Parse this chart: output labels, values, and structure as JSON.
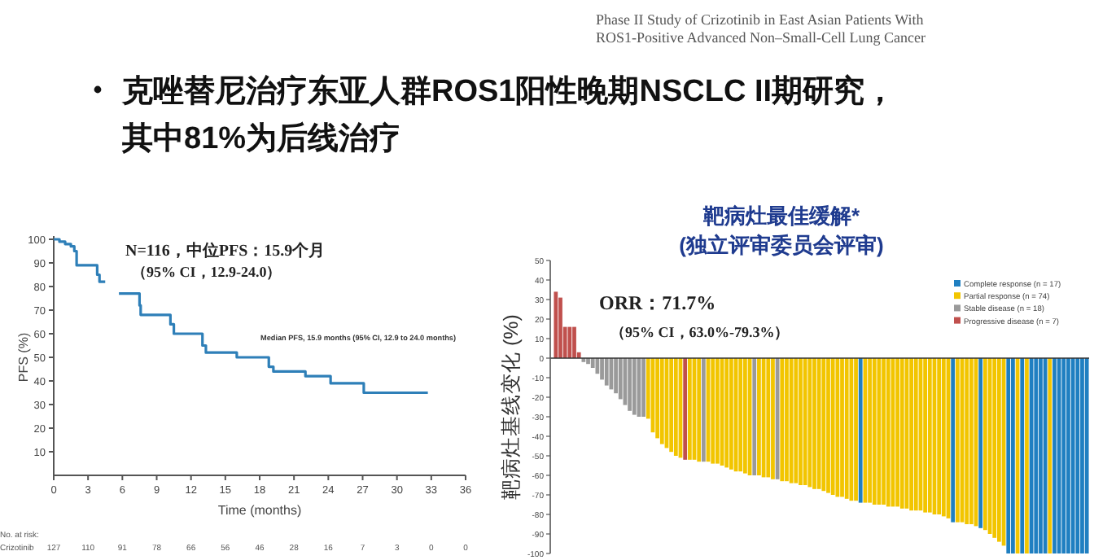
{
  "chart_data": [
    {
      "type": "step",
      "xlabel": "Time (months)",
      "ylabel": "PFS (%)",
      "xlim": [
        0,
        36
      ],
      "xticks": [
        0,
        3,
        6,
        9,
        12,
        15,
        18,
        21,
        24,
        27,
        30,
        33,
        36
      ],
      "ylim": [
        0,
        100
      ],
      "yticks": [
        10,
        20,
        30,
        40,
        50,
        60,
        70,
        80,
        90,
        100
      ],
      "series": [
        {
          "color": "#2e7fb8",
          "x": [
            0,
            0.5,
            1,
            1.5,
            1.8,
            2,
            3.5,
            3.8,
            4,
            4.5,
            5,
            5.7,
            7.2,
            7.5,
            7.6,
            10,
            10.2,
            10.5,
            12.8,
            13,
            13.3,
            15.5,
            16,
            18.5,
            18.8,
            19.2,
            21.5,
            22,
            24,
            24.2,
            27,
            27.1,
            32.7
          ],
          "values": [
            100,
            99,
            98,
            97,
            95,
            89,
            89,
            85,
            82,
            82,
            null,
            77,
            77,
            72,
            68,
            68,
            64,
            60,
            60,
            55,
            52,
            52,
            50,
            50,
            46,
            44,
            44,
            42,
            42,
            39,
            39,
            35,
            35
          ]
        }
      ],
      "annotations": [
        "Phase II Study of Crizotinib in East Asian Patients With",
        "ROS1-Positive Advanced Non–Small-Cell Lung Cancer",
        "克唑替尼治疗东亚人群ROS1阳性晚期NSCLC II期研究，",
        "其中81%为后线治疗",
        "N=116，中位PFS：15.9个月",
        "（95% CI，12.9-24.0）",
        "Median PFS, 15.9 months (95% CI, 12.9 to 24.0 months)",
        "No. at risk:",
        "Crizotinib",
        "127",
        "110",
        "91",
        "78",
        "66",
        "56",
        "46",
        "28",
        "16",
        "7",
        "3",
        "0",
        "0"
      ]
    },
    {
      "type": "bar",
      "title": "靶病灶最佳缓解*",
      "subtitle": "(独立评审委员会评审)",
      "ylabel": "靶病灶基线变化 (%)",
      "ylim": [
        -100,
        50
      ],
      "yticks": [
        50,
        40,
        30,
        20,
        10,
        0,
        -10,
        -20,
        -30,
        -40,
        -50,
        -60,
        -70,
        -80,
        -90,
        -100
      ],
      "legend": "top right",
      "categories": [
        null,
        null,
        null,
        null,
        null,
        null,
        null,
        null,
        null,
        null,
        null,
        null,
        null,
        null,
        null,
        null,
        null,
        null,
        null,
        null,
        null,
        null,
        null,
        null,
        null,
        null,
        null,
        null,
        null,
        null,
        null,
        null,
        null,
        null,
        null,
        null,
        null,
        null,
        null,
        null,
        null,
        null,
        null,
        null,
        null,
        null,
        null,
        null,
        null,
        null,
        null,
        null,
        null,
        null,
        null,
        null,
        null,
        null,
        null,
        null,
        null,
        null,
        null,
        null,
        null,
        null,
        null,
        null,
        null,
        null,
        null,
        null,
        null,
        null,
        null,
        null,
        null,
        null,
        null,
        null,
        null,
        null,
        null,
        null,
        null,
        null,
        null,
        null,
        null,
        null,
        null,
        null,
        null,
        null,
        null,
        null,
        null,
        null,
        null,
        null,
        null,
        null,
        null,
        null,
        null,
        null,
        null,
        null,
        null,
        null,
        null,
        null,
        null,
        null,
        null,
        null
      ],
      "series": [
        {
          "name": "Complete response (n = 17)",
          "color": "#1f7fc1",
          "values": [
            null,
            null,
            null,
            null,
            null,
            null,
            null,
            null,
            null,
            null,
            null,
            null,
            null,
            null,
            null,
            null,
            null,
            null,
            null,
            null,
            null,
            null,
            null,
            null,
            null,
            null,
            null,
            null,
            null,
            null,
            null,
            null,
            null,
            null,
            null,
            null,
            null,
            null,
            null,
            null,
            null,
            null,
            null,
            null,
            null,
            null,
            null,
            null,
            null,
            null,
            null,
            null,
            null,
            null,
            null,
            null,
            null,
            null,
            null,
            null,
            null,
            null,
            null,
            null,
            null,
            null,
            -74,
            null,
            null,
            null,
            null,
            null,
            null,
            null,
            null,
            null,
            null,
            null,
            null,
            null,
            null,
            null,
            null,
            null,
            null,
            null,
            -84,
            null,
            null,
            null,
            null,
            null,
            -87,
            null,
            null,
            null,
            null,
            null,
            -100,
            -100,
            null,
            -100,
            null,
            -100,
            -100,
            -100,
            -100,
            null,
            -100,
            -100,
            -100,
            -100,
            -100,
            -100,
            -100,
            -100
          ]
        },
        {
          "name": "Partial response (n = 74)",
          "color": "#f2c500",
          "values": [
            null,
            null,
            null,
            null,
            null,
            null,
            null,
            null,
            null,
            null,
            null,
            null,
            null,
            null,
            null,
            null,
            null,
            null,
            null,
            null,
            -31,
            -38,
            -41,
            -44,
            -46,
            -48,
            -50,
            -51,
            null,
            -52,
            -52,
            -53,
            null,
            -53,
            -54,
            -54,
            -55,
            -56,
            -57,
            -58,
            -58,
            -59,
            -60,
            null,
            -60,
            -61,
            -61,
            -62,
            null,
            -63,
            -63,
            -64,
            -64,
            -65,
            -65,
            -66,
            -67,
            -67,
            -68,
            -69,
            -70,
            -71,
            -71,
            -72,
            -73,
            -73,
            null,
            -74,
            -74,
            -75,
            -75,
            -75,
            -76,
            -76,
            -76,
            -77,
            -77,
            -78,
            -78,
            -78,
            -79,
            -79,
            -80,
            -80,
            -81,
            -82,
            null,
            -84,
            -84,
            -85,
            -85,
            -86,
            null,
            -88,
            -90,
            -92,
            -94,
            -96,
            null,
            null,
            -100,
            null,
            -100,
            null,
            null,
            null,
            null,
            -100,
            null,
            null,
            null,
            null,
            null,
            null,
            null,
            null
          ]
        },
        {
          "name": "Stable disease (n = 18)",
          "color": "#9a9a9a",
          "values": [
            null,
            null,
            null,
            null,
            null,
            null,
            -2,
            -3,
            -5,
            -8,
            -11,
            -14,
            -16,
            -18,
            -21,
            -24,
            -27,
            -29,
            -30,
            -30,
            null,
            null,
            null,
            null,
            null,
            null,
            null,
            null,
            null,
            null,
            null,
            null,
            -53,
            null,
            null,
            null,
            null,
            null,
            null,
            null,
            null,
            null,
            null,
            -60,
            null,
            null,
            null,
            null,
            -62,
            null,
            null,
            null,
            null,
            null,
            null,
            null,
            null,
            null,
            null,
            null,
            null,
            null,
            null,
            null,
            null,
            null,
            null,
            null,
            null,
            null,
            null,
            null,
            null,
            null,
            null,
            null,
            null,
            null,
            null,
            null,
            null,
            null,
            null,
            null,
            null,
            null,
            null,
            null,
            null,
            null,
            null,
            null,
            null,
            null,
            null,
            null,
            null,
            null,
            null,
            null,
            null,
            null,
            null,
            null,
            null,
            null,
            null,
            null,
            null,
            null,
            null,
            null,
            null,
            null,
            null,
            null
          ]
        },
        {
          "name": "Progressive disease (n = 7)",
          "color": "#c0504d",
          "values": [
            34,
            31,
            16,
            16,
            16,
            3,
            null,
            null,
            null,
            null,
            null,
            null,
            null,
            null,
            null,
            null,
            null,
            null,
            null,
            null,
            null,
            null,
            null,
            null,
            null,
            null,
            null,
            null,
            -52,
            null,
            null,
            null,
            null,
            null,
            null,
            null,
            null,
            null,
            null,
            null,
            null,
            null,
            null,
            null,
            null,
            null,
            null,
            null,
            null,
            null,
            null,
            null,
            null,
            null,
            null,
            null,
            null,
            null,
            null,
            null,
            null,
            null,
            null,
            null,
            null,
            null,
            null,
            null,
            null,
            null,
            null,
            null,
            null,
            null,
            null,
            null,
            null,
            null,
            null,
            null,
            null,
            null,
            null,
            null,
            null,
            null,
            null,
            null,
            null,
            null,
            null,
            null,
            null,
            null,
            null,
            null,
            null,
            null,
            null,
            null,
            null,
            null,
            null,
            null,
            null,
            null,
            null,
            null,
            null,
            null,
            null,
            null,
            null,
            null,
            null,
            null
          ]
        }
      ],
      "annotations": [
        "ORR：71.7%",
        "（95% CI，63.0%-79.3%）"
      ]
    }
  ]
}
